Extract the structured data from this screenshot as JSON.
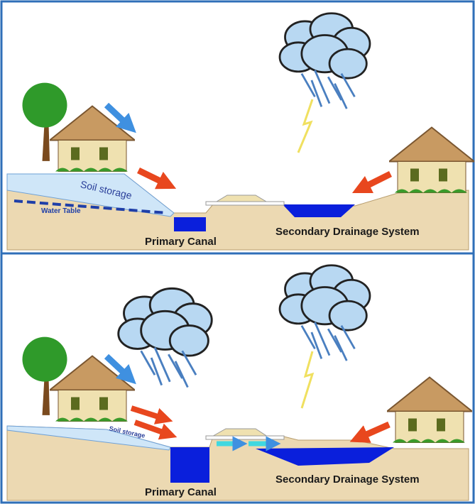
{
  "panels": [
    {
      "soil_label": "Soil storage",
      "water_table_label": "Water Table",
      "canal_label": "Primary Canal",
      "drainage_label": "Secondary Drainage System"
    },
    {
      "soil_label": "Soil storage",
      "canal_label": "Primary Canal",
      "drainage_label": "Secondary Drainage System"
    }
  ]
}
